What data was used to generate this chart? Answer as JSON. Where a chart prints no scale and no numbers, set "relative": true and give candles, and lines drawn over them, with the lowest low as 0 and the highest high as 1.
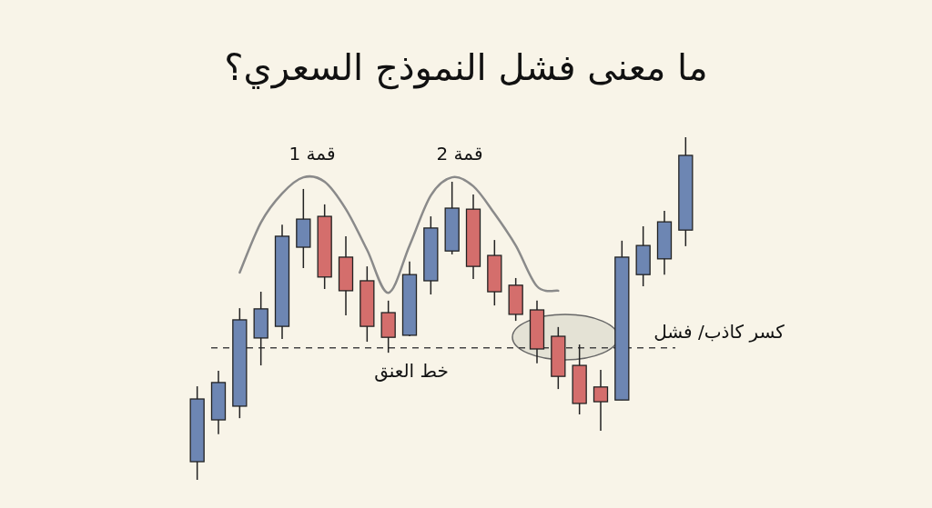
{
  "chart_data": {
    "type": "candlestick",
    "title": "ما معنى فشل النموذج السعري؟",
    "relative": true,
    "categories": [
      null,
      null,
      null,
      null,
      null,
      null,
      null,
      null,
      null,
      null,
      null,
      null,
      null,
      null,
      null,
      null,
      null,
      null,
      null,
      null,
      null,
      null,
      null,
      null
    ],
    "ohlc": [
      [
        0.053,
        0.273,
        0,
        0.236
      ],
      [
        0.175,
        0.318,
        0.133,
        0.284
      ],
      [
        0.215,
        0.501,
        0.18,
        0.467
      ],
      [
        0.414,
        0.549,
        0.334,
        0.499
      ],
      [
        0.448,
        0.745,
        0.411,
        0.711
      ],
      [
        0.679,
        0.849,
        0.618,
        0.761
      ],
      [
        0.769,
        0.804,
        0.557,
        0.592
      ],
      [
        0.65,
        0.711,
        0.48,
        0.552
      ],
      [
        0.581,
        0.623,
        0.403,
        0.448
      ],
      [
        0.488,
        0.523,
        0.371,
        0.416
      ],
      [
        0.422,
        0.637,
        0.419,
        0.599
      ],
      [
        0.581,
        0.769,
        0.541,
        0.735
      ],
      [
        0.668,
        0.87,
        0.658,
        0.793
      ],
      [
        0.79,
        0.833,
        0.586,
        0.623
      ],
      [
        0.655,
        0.7,
        0.509,
        0.549
      ],
      [
        0.568,
        0.589,
        0.464,
        0.483
      ],
      [
        0.496,
        0.523,
        0.34,
        0.382
      ],
      [
        0.419,
        0.446,
        0.265,
        0.302
      ],
      [
        0.334,
        0.395,
        0.191,
        0.223
      ],
      [
        0.271,
        0.321,
        0.143,
        0.228
      ],
      [
        0.233,
        0.698,
        0.233,
        0.65
      ],
      [
        0.599,
        0.74,
        0.565,
        0.684
      ],
      [
        0.645,
        0.785,
        0.599,
        0.753
      ],
      [
        0.729,
        1,
        0.682,
        0.947
      ]
    ],
    "colors": [
      "#6d86b3",
      "#6d86b3",
      "#6d86b3",
      "#6d86b3",
      "#6d86b3",
      "#6d86b3",
      "#d46e6c",
      "#d46e6c",
      "#d46e6c",
      "#d46e6c",
      "#6d86b3",
      "#6d86b3",
      "#6d86b3",
      "#d46e6c",
      "#d46e6c",
      "#d46e6c",
      "#d46e6c",
      "#d46e6c",
      "#d46e6c",
      "#d46e6c",
      "#6d86b3",
      "#6d86b3",
      "#6d86b3",
      "#6d86b3"
    ],
    "ref_lines": [
      {
        "axis": "y",
        "value": 0.385,
        "label": "خط العنق",
        "color": "#444444",
        "line_style": "dashed"
      }
    ],
    "series": [
      {
        "type": "line",
        "color": "#8a8a8a",
        "values": [
          null,
          null,
          0.605,
          0.751,
          0.836,
          0.883,
          0.87,
          0.79,
          0.671,
          0.546,
          0.684,
          0.83,
          0.883,
          0.857,
          0.777,
          0.684,
          0.565,
          0.552,
          null,
          null,
          null,
          null,
          null,
          null
        ]
      }
    ],
    "annotations": [
      "قمة 1",
      "قمة 2",
      "كسر كاذب/ فشل"
    ]
  }
}
